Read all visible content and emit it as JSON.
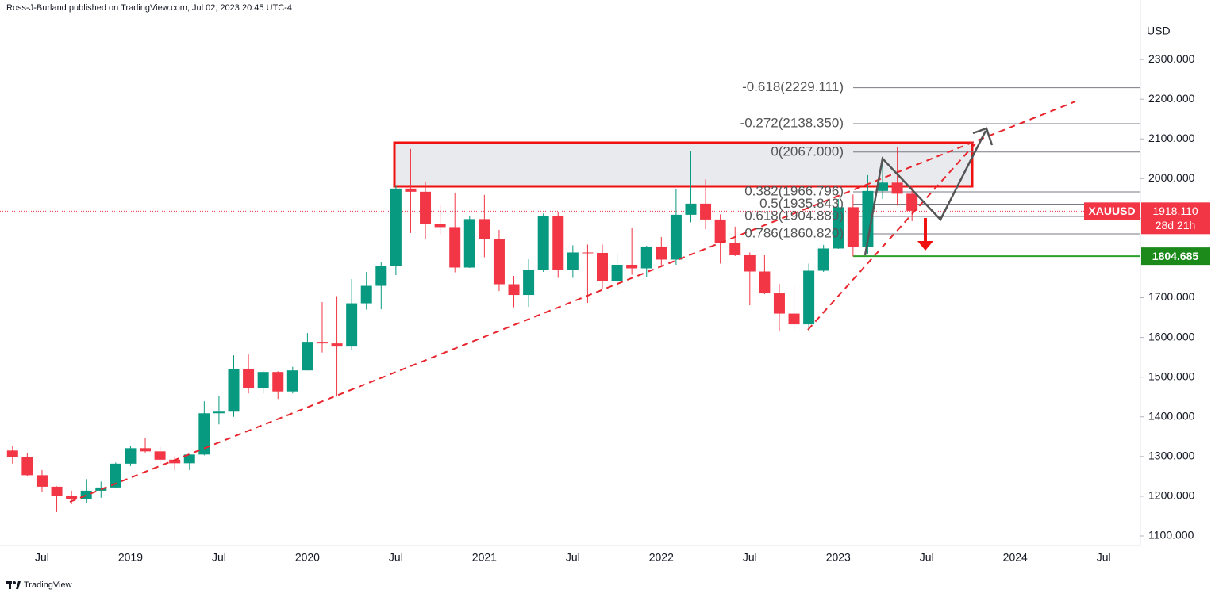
{
  "header": {
    "publisher": "Ross-J-Burland published on TradingView.com, Jul 02, 2023 20:45 UTC-4"
  },
  "chart_data": {
    "type": "candlestick",
    "symbol": "XAUUSD",
    "currency": "USD",
    "up_color": "#089981",
    "down_color": "#f23645",
    "categories": [
      null,
      null,
      "Jul",
      null,
      null,
      null,
      null,
      null,
      "2019",
      null,
      null,
      null,
      null,
      null,
      "Jul",
      null,
      null,
      null,
      null,
      null,
      "2020",
      null,
      null,
      null,
      null,
      null,
      "Jul",
      null,
      null,
      null,
      null,
      null,
      "2021",
      null,
      null,
      null,
      null,
      null,
      "Jul",
      null,
      null,
      null,
      null,
      null,
      "2022",
      null,
      null,
      null,
      null,
      null,
      "Jul",
      null,
      null,
      null,
      null,
      null,
      "2023",
      null,
      null,
      null,
      null,
      null,
      "Jul",
      null,
      null,
      null,
      null,
      null,
      "2024",
      null,
      null,
      null,
      null,
      null,
      "Jul"
    ],
    "open": [
      1315,
      1298,
      1253,
      1224,
      1201,
      1192,
      1214,
      1222,
      1282,
      1321,
      1313,
      1292,
      1283,
      1305,
      1409,
      1413,
      1520,
      1472,
      1513,
      1464,
      1517,
      1589,
      1585,
      1577,
      1686,
      1730,
      1781,
      1975,
      1967,
      1885,
      1878,
      1776,
      1898,
      1847,
      1734,
      1707,
      1769,
      1906,
      1770,
      1814,
      1813,
      1742,
      1783,
      1774,
      1829,
      1796,
      1909,
      1937,
      1897,
      1837,
      1807,
      1766,
      1711,
      1660,
      1633,
      1768,
      1824,
      1928,
      1827,
      1969,
      1990,
      1962,
      null,
      null,
      null,
      null,
      null,
      null,
      null,
      null,
      null,
      null,
      null,
      null,
      null
    ],
    "high": [
      1326,
      1309,
      1266,
      1225,
      1214,
      1243,
      1237,
      1285,
      1326,
      1347,
      1324,
      1298,
      1306,
      1439,
      1453,
      1555,
      1557,
      1516,
      1515,
      1526,
      1611,
      1689,
      1704,
      1747,
      1765,
      1789,
      1984,
      2075,
      1992,
      1933,
      1965,
      1906,
      1959,
      1871,
      1755,
      1797,
      1912,
      1916,
      1832,
      1834,
      1834,
      1813,
      1877,
      1831,
      1853,
      1974,
      2070,
      1998,
      1910,
      1879,
      1814,
      1807,
      1735,
      1730,
      1786,
      1833,
      1949,
      1960,
      2009,
      2048,
      2079,
      1983,
      null,
      null,
      null,
      null,
      null,
      null,
      null,
      null,
      null,
      null,
      null,
      null,
      null
    ],
    "low": [
      1282,
      1250,
      1211,
      1160,
      1180,
      1182,
      1196,
      1221,
      1276,
      1310,
      1281,
      1266,
      1266,
      1303,
      1381,
      1400,
      1459,
      1459,
      1445,
      1459,
      1517,
      1562,
      1451,
      1567,
      1670,
      1671,
      1757,
      1863,
      1848,
      1860,
      1764,
      1775,
      1802,
      1717,
      1676,
      1677,
      1765,
      1750,
      1750,
      1687,
      1721,
      1721,
      1758,
      1753,
      1780,
      1783,
      1890,
      1872,
      1786,
      1805,
      1681,
      1709,
      1615,
      1618,
      1616,
      1765,
      1823,
      1804,
      1810,
      1949,
      1932,
      1893,
      null,
      null,
      null,
      null,
      null,
      null,
      null,
      null,
      null,
      null,
      null,
      null,
      null
    ],
    "close": [
      1298,
      1253,
      1224,
      1201,
      1192,
      1214,
      1222,
      1282,
      1321,
      1313,
      1292,
      1283,
      1305,
      1409,
      1413,
      1520,
      1472,
      1513,
      1464,
      1517,
      1589,
      1585,
      1577,
      1686,
      1730,
      1781,
      1975,
      1967,
      1885,
      1878,
      1776,
      1898,
      1847,
      1734,
      1707,
      1769,
      1906,
      1770,
      1814,
      1813,
      1742,
      1783,
      1774,
      1829,
      1796,
      1909,
      1937,
      1897,
      1837,
      1807,
      1766,
      1711,
      1660,
      1633,
      1768,
      1824,
      1928,
      1827,
      1969,
      1990,
      1962,
      1919,
      null,
      null,
      null,
      null,
      null,
      null,
      null,
      null,
      null,
      null,
      null,
      null,
      null
    ],
    "ylim": [
      1076,
      2450
    ],
    "yticks": [
      {
        "value": 1100,
        "label": "1100.000"
      },
      {
        "value": 1200,
        "label": "1200.000"
      },
      {
        "value": 1300,
        "label": "1300.000"
      },
      {
        "value": 1400,
        "label": "1400.000"
      },
      {
        "value": 1500,
        "label": "1500.000"
      },
      {
        "value": 1600,
        "label": "1600.000"
      },
      {
        "value": 1700,
        "label": "1700.000"
      },
      {
        "value": 1800,
        "label": "1800.000"
      },
      {
        "value": 1900,
        "label": "1900.000"
      },
      {
        "value": 2000,
        "label": "2000.000"
      },
      {
        "value": 2100,
        "label": "2100.000"
      },
      {
        "value": 2200,
        "label": "2200.000"
      },
      {
        "value": 2300,
        "label": "2300.000"
      }
    ],
    "last_price": {
      "value": 1918.11,
      "label": "1918.110"
    },
    "countdown": "28d 21h",
    "fib": [
      {
        "value": 2229.111,
        "label": "-0.618(2229.111)"
      },
      {
        "value": 2138.35,
        "label": "-0.272(2138.350)"
      },
      {
        "value": 2067,
        "label": "0(2067.000)"
      },
      {
        "value": 1966.796,
        "label": "0.382(1966.796)"
      },
      {
        "value": 1935.843,
        "label": "0.5(1935.843)"
      },
      {
        "value": 1904.889,
        "label": "0.618(1904.889)"
      },
      {
        "value": 1860.82,
        "label": "0.786(1860.820)"
      }
    ],
    "support": {
      "value": 1804.685,
      "label": "1804.685"
    }
  },
  "footer": {
    "brand": "TradingView"
  }
}
